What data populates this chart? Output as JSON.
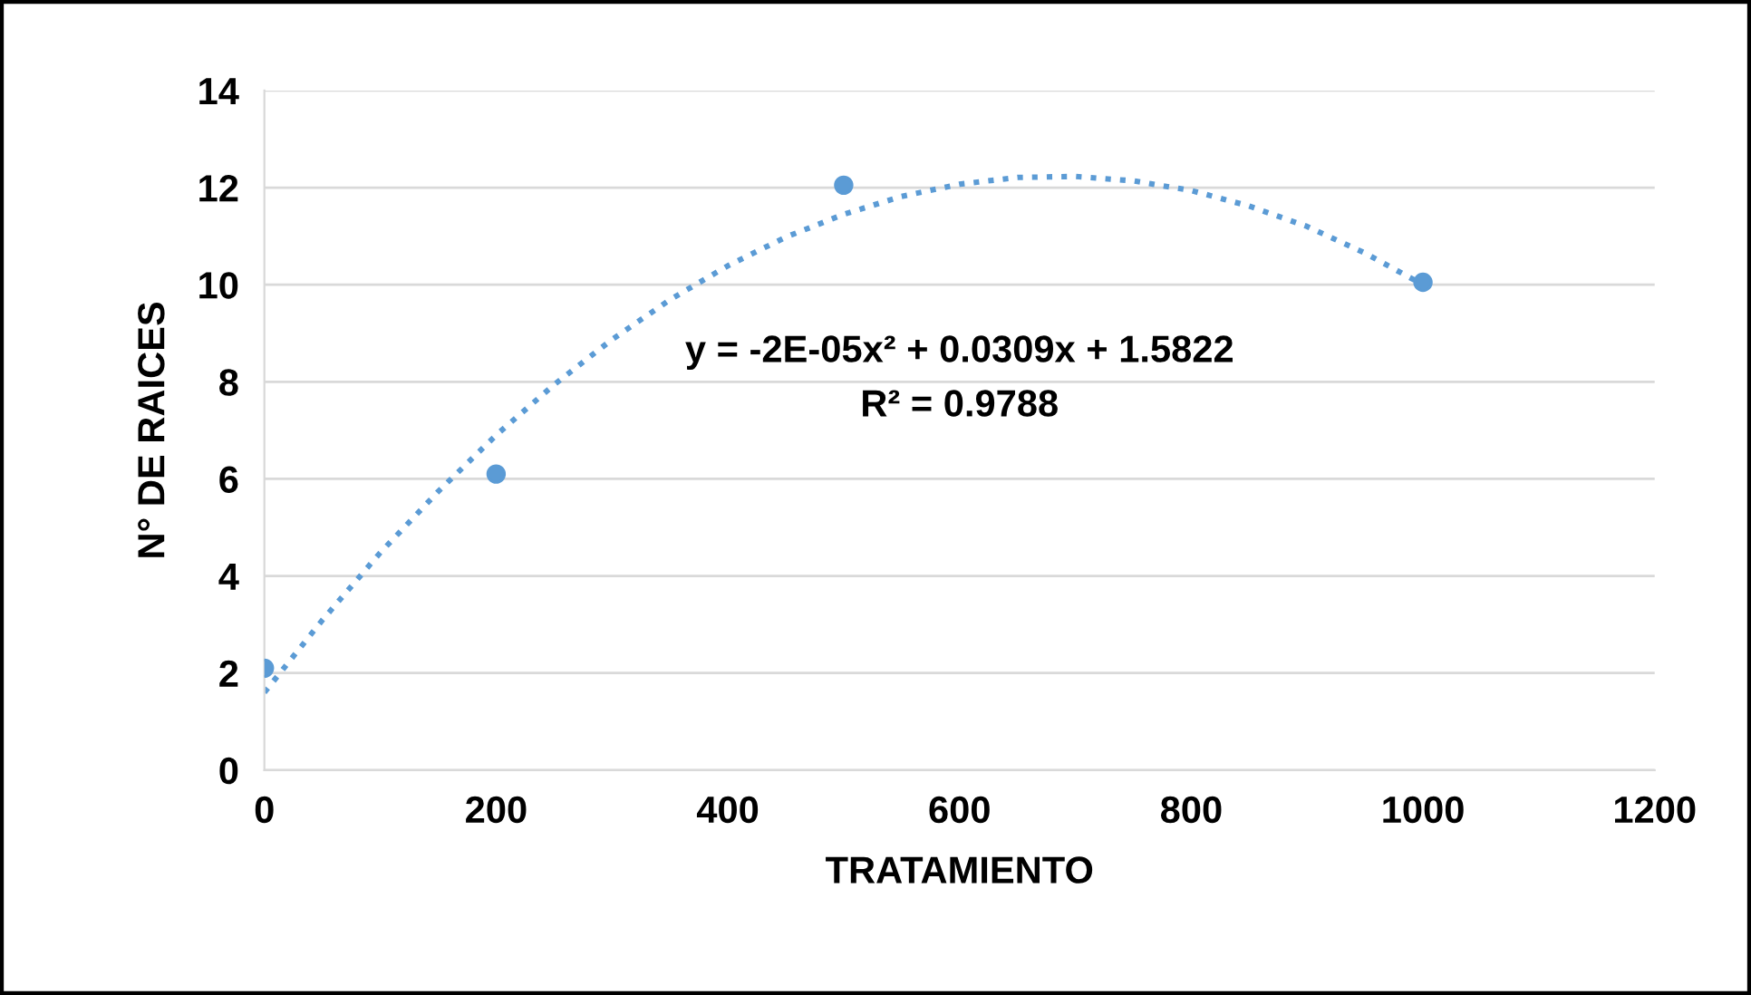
{
  "chart_data": {
    "type": "scatter",
    "xlabel": "TRATAMIENTO",
    "ylabel": "N° DE RAICES",
    "series": [
      {
        "color": "#5b9bd5",
        "x": [
          0,
          200,
          500,
          1000
        ],
        "values": [
          2.1,
          6.1,
          12.05,
          10.05
        ],
        "marker": "circle"
      },
      {
        "type": "line",
        "color": "#5b9bd5",
        "line_style": "dotted",
        "marker": "none",
        "x": [
          0,
          50,
          100,
          150,
          200,
          250,
          300,
          350,
          400,
          450,
          500,
          550,
          600,
          650,
          700,
          750,
          800,
          850,
          900,
          950,
          1000
        ],
        "values": [
          1.6,
          3.09,
          4.48,
          5.74,
          6.9,
          7.94,
          8.87,
          9.69,
          10.39,
          10.98,
          11.45,
          11.82,
          12.07,
          12.21,
          12.23,
          12.14,
          11.94,
          11.62,
          11.2,
          10.65,
          10.0
        ]
      }
    ],
    "xlim": [
      0,
      1200
    ],
    "xticks": [
      0,
      200,
      400,
      600,
      800,
      1000,
      1200
    ],
    "ylim": [
      0,
      14
    ],
    "yticks": [
      0,
      2,
      4,
      6,
      8,
      10,
      12,
      14
    ],
    "grid": "y",
    "legend": false,
    "annotations": [
      "y = -2E-05x² + 0.0309x + 1.5822",
      "R² = 0.9788"
    ]
  }
}
